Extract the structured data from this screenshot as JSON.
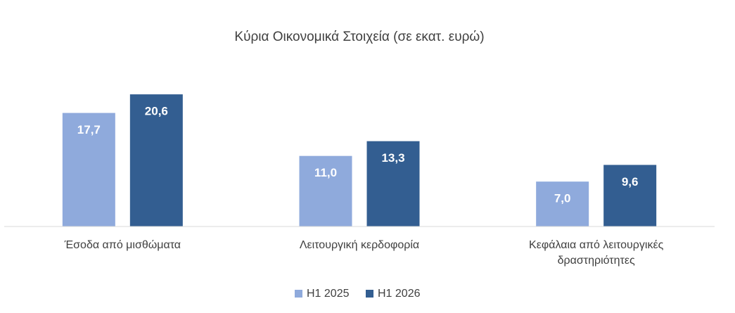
{
  "chart_data": {
    "type": "bar",
    "title": "Κύρια Οικονομικά Στοιχεία (σε εκατ. ευρώ)",
    "categories": [
      "Έσοδα από μισθώματα",
      "Λειτουργική κερδοφορία",
      "Κεφάλαια από λειτουργικές δραστηριότητες"
    ],
    "series": [
      {
        "name": "H1 2025",
        "color": "#8faadc",
        "values": [
          17.7,
          11.0,
          7.0
        ],
        "value_labels": [
          "17,7",
          "11,0",
          "7,0"
        ]
      },
      {
        "name": "H1 2026",
        "color": "#335e91",
        "values": [
          20.6,
          13.3,
          9.6
        ],
        "value_labels": [
          "20,6",
          "13,3",
          "9,6"
        ]
      }
    ],
    "ylim": [
      0,
      25
    ],
    "legend": "bottom"
  }
}
